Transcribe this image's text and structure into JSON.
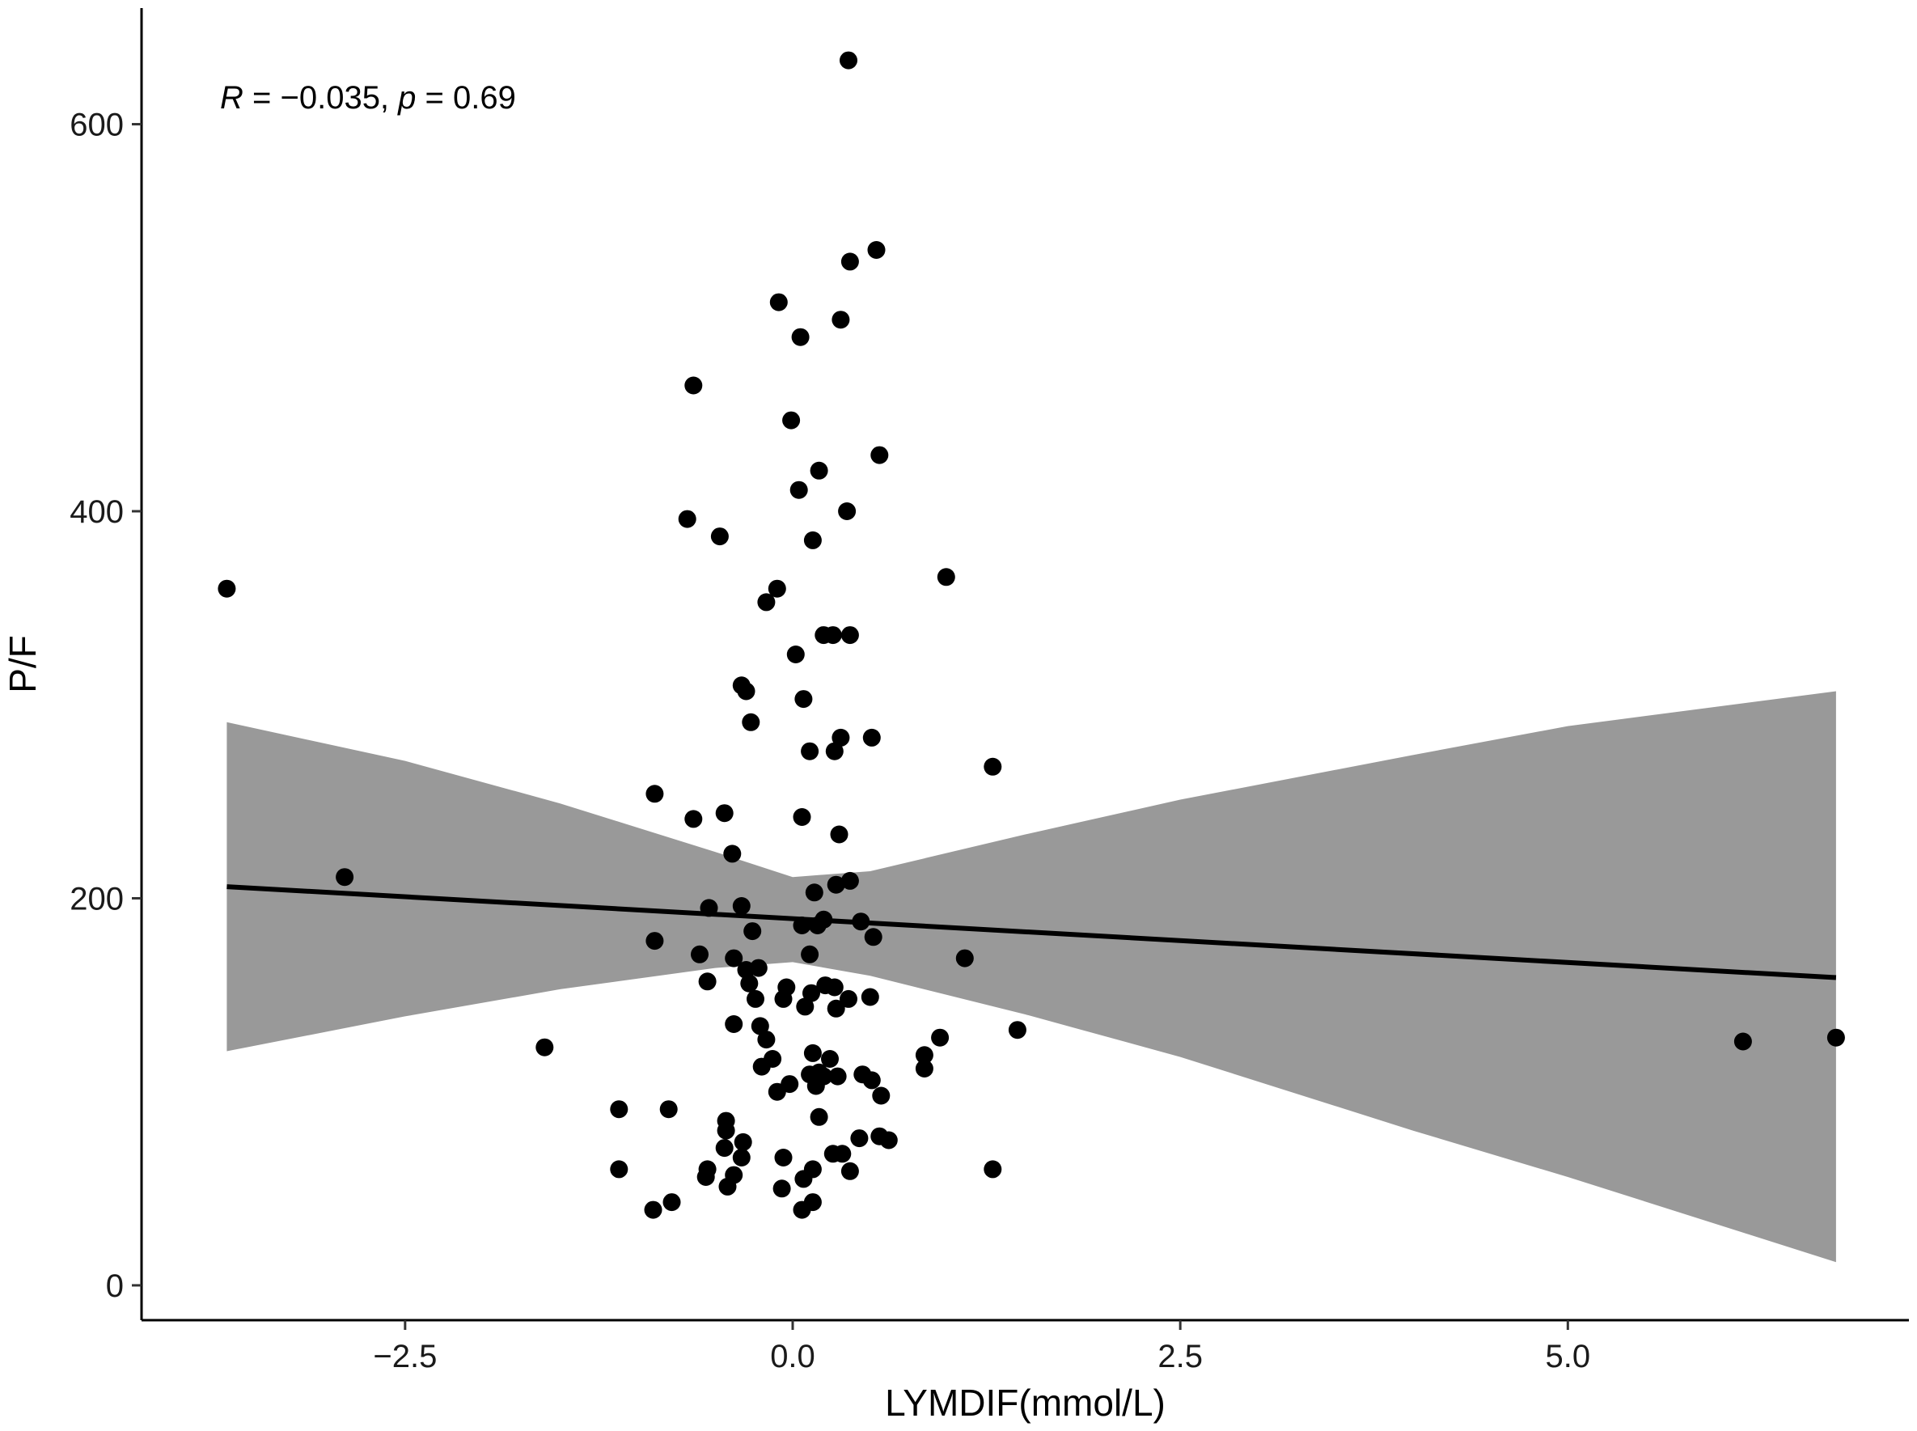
{
  "chart_data": {
    "type": "scatter",
    "xlabel": "LYMDIF(mmol/L)",
    "ylabel": "P/F",
    "xlim": [
      -4.2,
      7.2
    ],
    "ylim": [
      -18,
      660
    ],
    "xticks": [
      -2.5,
      0.0,
      2.5,
      5.0
    ],
    "xtick_labels": [
      "−2.5",
      "0.0",
      "2.5",
      "5.0"
    ],
    "yticks": [
      0,
      200,
      400,
      600
    ],
    "ytick_labels": [
      "0",
      "200",
      "400",
      "600"
    ],
    "grid": false,
    "legend": "none",
    "annotation": {
      "r_symbol": "R",
      "r_text": " = −0.035, ",
      "p_symbol": "p",
      "p_text": " = 0.69"
    },
    "colors": {
      "points": "#000000",
      "fit_line": "#000000",
      "confidence_band": "#999999"
    },
    "fit_line": {
      "x": [
        -3.65,
        6.73
      ],
      "y": [
        206,
        159
      ]
    },
    "confidence_band": {
      "x": [
        -3.65,
        -2.5,
        -1.5,
        -0.5,
        0.0,
        0.5,
        1.5,
        2.5,
        4.0,
        5.0,
        6.73
      ],
      "lower": [
        121,
        139,
        153,
        164,
        167,
        160,
        140,
        118,
        80,
        56,
        12
      ],
      "upper": [
        291,
        271,
        249,
        224,
        211,
        214,
        233,
        251,
        274,
        289,
        307
      ]
    },
    "points": {
      "x": [
        0.36,
        0.54,
        0.37,
        -0.09,
        0.31,
        0.05,
        -0.64,
        -0.01,
        0.56,
        0.17,
        0.04,
        -0.68,
        0.35,
        -0.47,
        0.13,
        0.99,
        -3.65,
        -0.1,
        -0.17,
        0.26,
        0.2,
        0.37,
        0.02,
        -0.33,
        -0.3,
        0.07,
        -0.27,
        0.51,
        0.31,
        0.11,
        0.27,
        1.29,
        -0.89,
        -0.44,
        -0.64,
        0.06,
        0.3,
        -0.39,
        -2.89,
        0.37,
        0.28,
        0.14,
        -0.54,
        -0.33,
        0.44,
        0.2,
        0.16,
        0.06,
        0.52,
        -0.89,
        -0.6,
        0.11,
        -0.26,
        1.11,
        -0.38,
        -0.3,
        -0.22,
        -0.28,
        -0.04,
        0.21,
        0.27,
        0.12,
        -0.55,
        -0.06,
        0.5,
        -0.24,
        -0.38,
        -0.21,
        0.28,
        0.36,
        1.45,
        0.95,
        -0.17,
        -1.6,
        0.08,
        0.13,
        -0.13,
        0.24,
        0.85,
        -0.2,
        0.11,
        0.85,
        0.17,
        0.45,
        0.29,
        0.51,
        0.2,
        0.15,
        -0.02,
        -0.1,
        0.57,
        -1.12,
        -0.8,
        0.17,
        -0.43,
        -0.43,
        0.56,
        0.62,
        0.43,
        -0.32,
        -0.44,
        0.26,
        0.32,
        -0.06,
        -0.33,
        -1.12,
        -0.55,
        1.29,
        0.37,
        0.13,
        -0.38,
        -0.56,
        0.07,
        -0.42,
        -0.07,
        -0.78,
        0.13,
        -0.9,
        0.06,
        6.13,
        6.73
      ],
      "y": [
        633,
        535,
        529,
        508,
        499,
        490,
        465,
        447,
        429,
        421,
        411,
        396,
        400,
        387,
        385,
        366,
        360,
        360,
        353,
        336,
        336,
        336,
        326,
        310,
        307,
        303,
        291,
        283,
        283,
        276,
        276,
        268,
        254,
        244,
        241,
        242,
        233,
        223,
        211,
        209,
        207,
        203,
        195,
        196,
        188,
        189,
        186,
        186,
        180,
        178,
        171,
        171,
        183,
        169,
        169,
        163,
        164,
        156,
        154,
        155,
        154,
        151,
        157,
        148,
        149,
        148,
        135,
        134,
        143,
        148,
        132,
        128,
        127,
        123,
        144,
        120,
        117,
        117,
        119,
        113,
        109,
        112,
        110,
        109,
        108,
        106,
        108,
        103,
        104,
        100,
        98,
        91,
        91,
        87,
        85,
        80,
        77,
        75,
        76,
        74,
        71,
        68,
        68,
        66,
        66,
        60,
        60,
        60,
        59,
        60,
        57,
        56,
        55,
        51,
        50,
        43,
        43,
        39,
        39,
        126,
        128
      ]
    }
  }
}
